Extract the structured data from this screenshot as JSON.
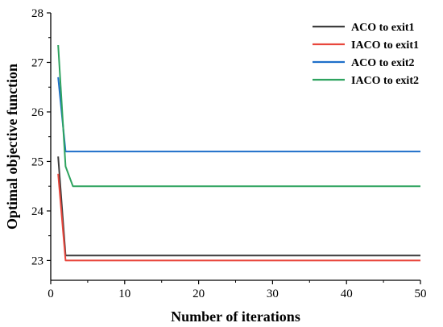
{
  "chart_data": {
    "type": "line",
    "title": "",
    "xlabel": "Number of iterations",
    "ylabel": "Optimal objective function",
    "xlim": [
      0,
      50
    ],
    "ylim": [
      22.6,
      28
    ],
    "xticks": [
      0,
      10,
      20,
      30,
      40,
      50
    ],
    "yticks": [
      23,
      24,
      25,
      26,
      27,
      28
    ],
    "grid": false,
    "legend_position": "top-right",
    "series": [
      {
        "name": "ACO to exit1",
        "color": "#3d3d3d",
        "x": [
          1,
          2,
          50
        ],
        "y": [
          25.1,
          23.1,
          23.1
        ]
      },
      {
        "name": "IACO to exit1",
        "color": "#e8463c",
        "x": [
          1,
          2,
          50
        ],
        "y": [
          24.75,
          23.0,
          23.0
        ]
      },
      {
        "name": "ACO to exit2",
        "color": "#1f6fc9",
        "x": [
          1,
          2,
          50
        ],
        "y": [
          26.7,
          25.2,
          25.2
        ]
      },
      {
        "name": "IACO to exit2",
        "color": "#2ea35f",
        "x": [
          1,
          2,
          3,
          50
        ],
        "y": [
          27.35,
          24.9,
          24.5,
          24.5
        ]
      }
    ]
  }
}
